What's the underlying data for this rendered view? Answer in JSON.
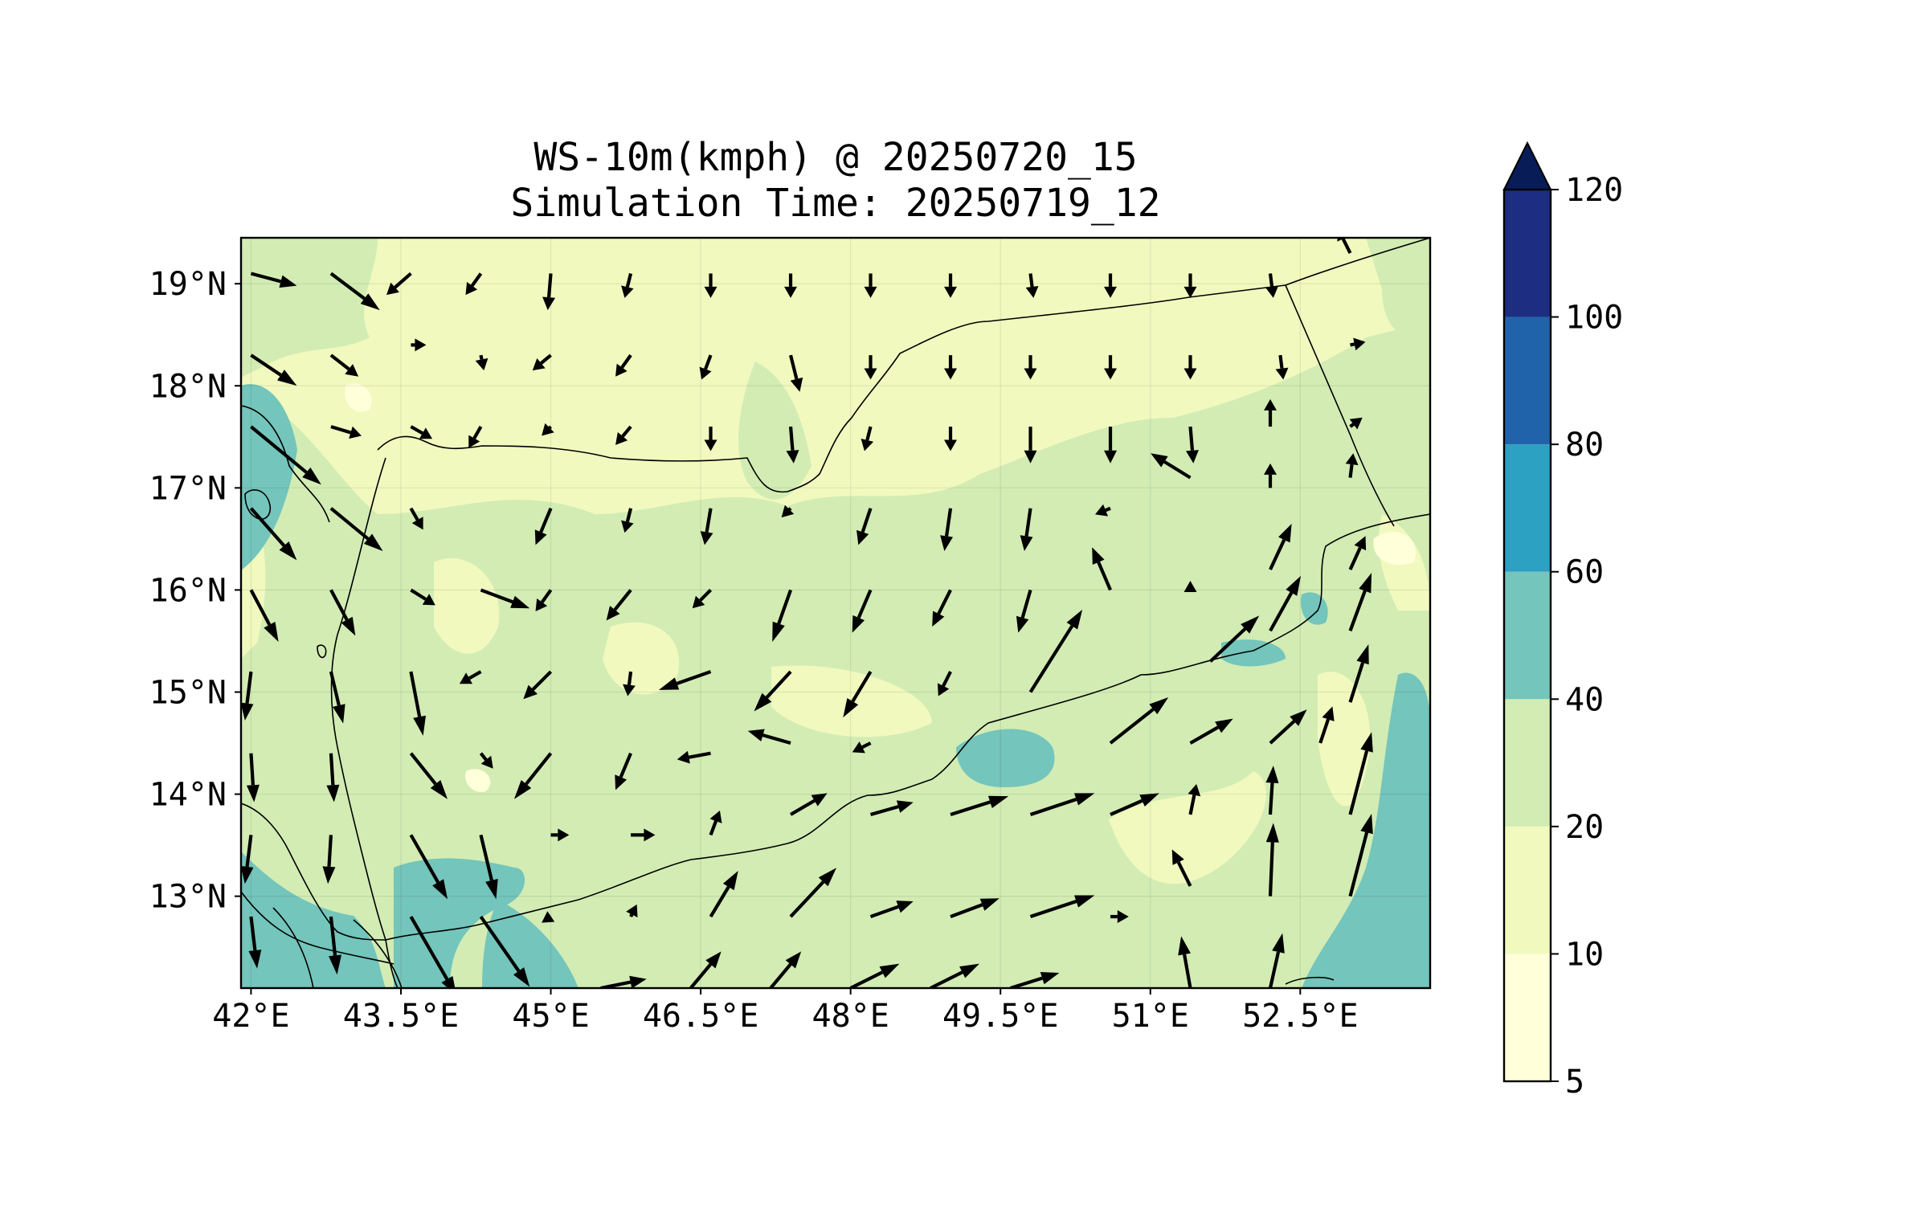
{
  "title": {
    "line1": "WS-10m(kmph) @ 20250720_15",
    "line2": "Simulation Time: 20250719_12"
  },
  "axes": {
    "lon_range": [
      41.9,
      53.8
    ],
    "lat_range": [
      12.1,
      19.45
    ],
    "x_ticks": [
      {
        "value": 42,
        "label": "42°E"
      },
      {
        "value": 43.5,
        "label": "43.5°E"
      },
      {
        "value": 45,
        "label": "45°E"
      },
      {
        "value": 46.5,
        "label": "46.5°E"
      },
      {
        "value": 48,
        "label": "48°E"
      },
      {
        "value": 49.5,
        "label": "49.5°E"
      },
      {
        "value": 51,
        "label": "51°E"
      },
      {
        "value": 52.5,
        "label": "52.5°E"
      }
    ],
    "y_ticks": [
      {
        "value": 19,
        "label": "19°N"
      },
      {
        "value": 18,
        "label": "18°N"
      },
      {
        "value": 17,
        "label": "17°N"
      },
      {
        "value": 16,
        "label": "16°N"
      },
      {
        "value": 15,
        "label": "15°N"
      },
      {
        "value": 14,
        "label": "14°N"
      },
      {
        "value": 13,
        "label": "13°N"
      }
    ]
  },
  "colorbar": {
    "levels": [
      {
        "value": 5,
        "label": "5",
        "color": "#ffffd9"
      },
      {
        "value": 10,
        "label": "10",
        "color": "#f1f9bf"
      },
      {
        "value": 20,
        "label": "20",
        "color": "#d2ecb4"
      },
      {
        "value": 40,
        "label": "40",
        "color": "#74c5bb"
      },
      {
        "value": 60,
        "label": "60",
        "color": "#2ca1c2"
      },
      {
        "value": 80,
        "label": "80",
        "color": "#2163aa"
      },
      {
        "value": 100,
        "label": "100",
        "color": "#1c2d82"
      },
      {
        "value": 120,
        "label": "120",
        "color": "#081d58"
      }
    ],
    "extend": "max"
  },
  "chart_data": {
    "type": "heatmap",
    "variable": "WS-10m(kmph)",
    "valid_time": "20250720_15",
    "simulation_time": "20250719_12",
    "colorbar_bounds": [
      5,
      10,
      20,
      40,
      60,
      80,
      100,
      120
    ],
    "wind_vectors_note_units": "m/s-like arrows, shown as direction and relative length",
    "wind_vectors": [
      {
        "lon": 42.0,
        "lat": 19.1,
        "u": 1.5,
        "v": -0.4
      },
      {
        "lon": 42.8,
        "lat": 19.1,
        "u": 1.6,
        "v": -1.2
      },
      {
        "lon": 43.6,
        "lat": 19.1,
        "u": -0.8,
        "v": -0.7
      },
      {
        "lon": 44.3,
        "lat": 19.1,
        "u": -0.5,
        "v": -0.7
      },
      {
        "lon": 45.0,
        "lat": 19.1,
        "u": -0.1,
        "v": -1.2
      },
      {
        "lon": 45.8,
        "lat": 19.1,
        "u": -0.2,
        "v": -0.8
      },
      {
        "lon": 46.6,
        "lat": 19.1,
        "u": 0.0,
        "v": -0.8
      },
      {
        "lon": 47.4,
        "lat": 19.1,
        "u": 0.0,
        "v": -0.8
      },
      {
        "lon": 48.2,
        "lat": 19.1,
        "u": 0.0,
        "v": -0.8
      },
      {
        "lon": 49.0,
        "lat": 19.1,
        "u": 0.0,
        "v": -0.8
      },
      {
        "lon": 49.8,
        "lat": 19.1,
        "u": 0.1,
        "v": -0.8
      },
      {
        "lon": 50.6,
        "lat": 19.1,
        "u": 0.0,
        "v": -0.8
      },
      {
        "lon": 51.4,
        "lat": 19.1,
        "u": 0.0,
        "v": -0.8
      },
      {
        "lon": 52.2,
        "lat": 19.1,
        "u": 0.1,
        "v": -0.8
      },
      {
        "lon": 53.0,
        "lat": 19.3,
        "u": -0.4,
        "v": 0.8
      },
      {
        "lon": 42.0,
        "lat": 18.3,
        "u": 1.5,
        "v": -1.0
      },
      {
        "lon": 42.8,
        "lat": 18.3,
        "u": 0.9,
        "v": -0.7
      },
      {
        "lon": 43.6,
        "lat": 18.4,
        "u": 0.5,
        "v": 0.0
      },
      {
        "lon": 44.3,
        "lat": 18.3,
        "u": 0.1,
        "v": -0.5
      },
      {
        "lon": 45.0,
        "lat": 18.3,
        "u": -0.6,
        "v": -0.5
      },
      {
        "lon": 45.8,
        "lat": 18.3,
        "u": -0.5,
        "v": -0.7
      },
      {
        "lon": 46.6,
        "lat": 18.3,
        "u": -0.3,
        "v": -0.8
      },
      {
        "lon": 47.4,
        "lat": 18.3,
        "u": 0.3,
        "v": -1.2
      },
      {
        "lon": 48.2,
        "lat": 18.3,
        "u": 0.0,
        "v": -0.8
      },
      {
        "lon": 49.0,
        "lat": 18.3,
        "u": 0.0,
        "v": -0.8
      },
      {
        "lon": 49.8,
        "lat": 18.3,
        "u": 0.0,
        "v": -0.8
      },
      {
        "lon": 50.6,
        "lat": 18.3,
        "u": 0.0,
        "v": -0.8
      },
      {
        "lon": 51.4,
        "lat": 18.3,
        "u": 0.0,
        "v": -0.8
      },
      {
        "lon": 52.3,
        "lat": 18.3,
        "u": 0.1,
        "v": -0.8
      },
      {
        "lon": 53.0,
        "lat": 18.4,
        "u": 0.5,
        "v": 0.1
      },
      {
        "lon": 42.0,
        "lat": 17.6,
        "u": 2.3,
        "v": -1.9
      },
      {
        "lon": 42.8,
        "lat": 17.6,
        "u": 1.0,
        "v": -0.3
      },
      {
        "lon": 43.6,
        "lat": 17.6,
        "u": 0.7,
        "v": -0.4
      },
      {
        "lon": 44.3,
        "lat": 17.6,
        "u": -0.4,
        "v": -0.7
      },
      {
        "lon": 45.0,
        "lat": 17.6,
        "u": -0.3,
        "v": -0.3
      },
      {
        "lon": 45.8,
        "lat": 17.6,
        "u": -0.5,
        "v": -0.6
      },
      {
        "lon": 46.6,
        "lat": 17.6,
        "u": 0.0,
        "v": -0.8
      },
      {
        "lon": 47.4,
        "lat": 17.6,
        "u": 0.1,
        "v": -1.2
      },
      {
        "lon": 48.2,
        "lat": 17.6,
        "u": -0.2,
        "v": -0.8
      },
      {
        "lon": 49.0,
        "lat": 17.6,
        "u": 0.0,
        "v": -0.8
      },
      {
        "lon": 49.8,
        "lat": 17.6,
        "u": 0.0,
        "v": -1.2
      },
      {
        "lon": 50.6,
        "lat": 17.6,
        "u": 0.0,
        "v": -1.2
      },
      {
        "lon": 51.4,
        "lat": 17.6,
        "u": 0.1,
        "v": -1.2
      },
      {
        "lon": 52.2,
        "lat": 17.6,
        "u": 0.0,
        "v": 0.9
      },
      {
        "lon": 53.0,
        "lat": 17.6,
        "u": 0.4,
        "v": 0.3
      },
      {
        "lon": 42.0,
        "lat": 16.8,
        "u": 1.5,
        "v": -1.7
      },
      {
        "lon": 42.8,
        "lat": 16.8,
        "u": 1.7,
        "v": -1.4
      },
      {
        "lon": 43.6,
        "lat": 16.8,
        "u": 0.4,
        "v": -0.7
      },
      {
        "lon": 44.3,
        "lat": 16.8,
        "u": 0.0,
        "v": 0.0
      },
      {
        "lon": 45.0,
        "lat": 16.8,
        "u": -0.5,
        "v": -1.2
      },
      {
        "lon": 45.8,
        "lat": 16.8,
        "u": -0.2,
        "v": -0.8
      },
      {
        "lon": 46.6,
        "lat": 16.8,
        "u": -0.2,
        "v": -1.2
      },
      {
        "lon": 47.4,
        "lat": 16.8,
        "u": -0.3,
        "v": -0.3
      },
      {
        "lon": 48.2,
        "lat": 16.8,
        "u": -0.4,
        "v": -1.2
      },
      {
        "lon": 49.0,
        "lat": 16.8,
        "u": -0.2,
        "v": -1.4
      },
      {
        "lon": 49.8,
        "lat": 16.8,
        "u": -0.2,
        "v": -1.4
      },
      {
        "lon": 50.6,
        "lat": 16.8,
        "u": -0.5,
        "v": -0.2
      },
      {
        "lon": 51.4,
        "lat": 17.1,
        "u": -1.3,
        "v": 0.8
      },
      {
        "lon": 52.2,
        "lat": 17.0,
        "u": 0.0,
        "v": 0.8
      },
      {
        "lon": 53.0,
        "lat": 17.1,
        "u": 0.1,
        "v": 0.8
      },
      {
        "lon": 42.0,
        "lat": 16.0,
        "u": 0.9,
        "v": -1.7
      },
      {
        "lon": 42.8,
        "lat": 16.0,
        "u": 0.8,
        "v": -1.5
      },
      {
        "lon": 43.6,
        "lat": 16.0,
        "u": 0.8,
        "v": -0.5
      },
      {
        "lon": 44.3,
        "lat": 16.0,
        "u": 1.6,
        "v": -0.6
      },
      {
        "lon": 45.0,
        "lat": 16.0,
        "u": -0.5,
        "v": -0.7
      },
      {
        "lon": 45.8,
        "lat": 16.0,
        "u": -0.8,
        "v": -1.0
      },
      {
        "lon": 46.6,
        "lat": 16.0,
        "u": -0.6,
        "v": -0.6
      },
      {
        "lon": 47.4,
        "lat": 16.0,
        "u": -0.6,
        "v": -1.7
      },
      {
        "lon": 48.2,
        "lat": 16.0,
        "u": -0.6,
        "v": -1.4
      },
      {
        "lon": 49.0,
        "lat": 16.0,
        "u": -0.6,
        "v": -1.2
      },
      {
        "lon": 49.8,
        "lat": 16.0,
        "u": -0.4,
        "v": -1.4
      },
      {
        "lon": 50.6,
        "lat": 16.0,
        "u": -0.6,
        "v": 1.4
      },
      {
        "lon": 51.4,
        "lat": 16.0,
        "u": 0.0,
        "v": 0.3
      },
      {
        "lon": 52.2,
        "lat": 16.2,
        "u": 0.7,
        "v": 1.5
      },
      {
        "lon": 53.0,
        "lat": 16.2,
        "u": 0.5,
        "v": 1.1
      },
      {
        "lon": 42.0,
        "lat": 15.2,
        "u": -0.2,
        "v": -1.6
      },
      {
        "lon": 42.8,
        "lat": 15.2,
        "u": 0.4,
        "v": -1.7
      },
      {
        "lon": 43.6,
        "lat": 15.2,
        "u": 0.4,
        "v": -2.1
      },
      {
        "lon": 44.3,
        "lat": 15.2,
        "u": -0.7,
        "v": -0.4
      },
      {
        "lon": 45.0,
        "lat": 15.2,
        "u": -0.9,
        "v": -0.9
      },
      {
        "lon": 45.8,
        "lat": 15.2,
        "u": -0.1,
        "v": -0.8
      },
      {
        "lon": 46.6,
        "lat": 15.2,
        "u": -1.7,
        "v": -0.6
      },
      {
        "lon": 47.4,
        "lat": 15.2,
        "u": -1.2,
        "v": -1.3
      },
      {
        "lon": 48.2,
        "lat": 15.2,
        "u": -0.9,
        "v": -1.5
      },
      {
        "lon": 49.0,
        "lat": 15.2,
        "u": -0.4,
        "v": -0.8
      },
      {
        "lon": 49.8,
        "lat": 15.0,
        "u": 1.7,
        "v": 2.7
      },
      {
        "lon": 50.5,
        "lat": 15.2,
        "u": 0.0,
        "v": 0.0
      },
      {
        "lon": 51.2,
        "lat": 15.2,
        "u": 0.0,
        "v": 0.0
      },
      {
        "lon": 51.6,
        "lat": 15.3,
        "u": 1.6,
        "v": 1.5
      },
      {
        "lon": 52.2,
        "lat": 15.6,
        "u": 1.0,
        "v": 1.8
      },
      {
        "lon": 53.0,
        "lat": 15.6,
        "u": 0.7,
        "v": 1.9
      },
      {
        "lon": 42.0,
        "lat": 14.4,
        "u": 0.1,
        "v": -1.6
      },
      {
        "lon": 42.8,
        "lat": 14.4,
        "u": 0.1,
        "v": -1.6
      },
      {
        "lon": 43.6,
        "lat": 14.4,
        "u": 1.2,
        "v": -1.5
      },
      {
        "lon": 44.3,
        "lat": 14.4,
        "u": 0.4,
        "v": -0.5
      },
      {
        "lon": 45.0,
        "lat": 14.4,
        "u": -1.2,
        "v": -1.5
      },
      {
        "lon": 45.8,
        "lat": 14.4,
        "u": -0.5,
        "v": -1.2
      },
      {
        "lon": 46.6,
        "lat": 14.4,
        "u": -1.1,
        "v": -0.2
      },
      {
        "lon": 47.4,
        "lat": 14.5,
        "u": -1.4,
        "v": 0.4
      },
      {
        "lon": 48.2,
        "lat": 14.5,
        "u": -0.6,
        "v": -0.3
      },
      {
        "lon": 49.0,
        "lat": 14.5,
        "u": 0.0,
        "v": 0.0
      },
      {
        "lon": 49.8,
        "lat": 14.5,
        "u": 0.0,
        "v": 0.0
      },
      {
        "lon": 50.6,
        "lat": 14.5,
        "u": 1.9,
        "v": 1.5
      },
      {
        "lon": 51.4,
        "lat": 14.5,
        "u": 1.4,
        "v": 0.8
      },
      {
        "lon": 52.2,
        "lat": 14.5,
        "u": 1.2,
        "v": 1.1
      },
      {
        "lon": 52.7,
        "lat": 14.5,
        "u": 0.4,
        "v": 1.2
      },
      {
        "lon": 53.0,
        "lat": 14.9,
        "u": 0.6,
        "v": 1.9
      },
      {
        "lon": 42.0,
        "lat": 13.6,
        "u": -0.2,
        "v": -1.6
      },
      {
        "lon": 42.8,
        "lat": 13.6,
        "u": -0.1,
        "v": -1.6
      },
      {
        "lon": 43.6,
        "lat": 13.6,
        "u": 1.2,
        "v": -2.1
      },
      {
        "lon": 44.3,
        "lat": 13.6,
        "u": 0.5,
        "v": -2.1
      },
      {
        "lon": 45.0,
        "lat": 13.6,
        "u": 0.6,
        "v": 0.0
      },
      {
        "lon": 45.8,
        "lat": 13.6,
        "u": 0.8,
        "v": 0.0
      },
      {
        "lon": 46.6,
        "lat": 13.6,
        "u": 0.3,
        "v": 0.8
      },
      {
        "lon": 47.4,
        "lat": 13.8,
        "u": 1.2,
        "v": 0.7
      },
      {
        "lon": 48.2,
        "lat": 13.8,
        "u": 1.4,
        "v": 0.4
      },
      {
        "lon": 49.0,
        "lat": 13.8,
        "u": 1.9,
        "v": 0.6
      },
      {
        "lon": 49.8,
        "lat": 13.8,
        "u": 2.1,
        "v": 0.7
      },
      {
        "lon": 50.6,
        "lat": 13.8,
        "u": 1.6,
        "v": 0.7
      },
      {
        "lon": 51.4,
        "lat": 13.8,
        "u": 0.2,
        "v": 1.0
      },
      {
        "lon": 52.2,
        "lat": 13.8,
        "u": 0.1,
        "v": 1.6
      },
      {
        "lon": 53.0,
        "lat": 13.8,
        "u": 0.7,
        "v": 2.7
      },
      {
        "lon": 42.0,
        "lat": 12.8,
        "u": 0.2,
        "v": -1.7
      },
      {
        "lon": 42.8,
        "lat": 12.8,
        "u": 0.2,
        "v": -1.9
      },
      {
        "lon": 43.6,
        "lat": 12.8,
        "u": 1.5,
        "v": -2.6
      },
      {
        "lon": 44.3,
        "lat": 12.8,
        "u": 1.6,
        "v": -2.3
      },
      {
        "lon": 45.0,
        "lat": 12.8,
        "u": -0.3,
        "v": -0.2
      },
      {
        "lon": 45.8,
        "lat": 12.8,
        "u": 0.2,
        "v": 0.4
      },
      {
        "lon": 46.6,
        "lat": 12.8,
        "u": 0.9,
        "v": 1.5
      },
      {
        "lon": 47.4,
        "lat": 12.8,
        "u": 1.5,
        "v": 1.6
      },
      {
        "lon": 48.2,
        "lat": 12.8,
        "u": 1.4,
        "v": 0.5
      },
      {
        "lon": 49.0,
        "lat": 12.8,
        "u": 1.6,
        "v": 0.6
      },
      {
        "lon": 49.8,
        "lat": 12.8,
        "u": 2.1,
        "v": 0.7
      },
      {
        "lon": 50.6,
        "lat": 12.8,
        "u": 0.6,
        "v": 0.0
      },
      {
        "lon": 51.4,
        "lat": 13.1,
        "u": -0.6,
        "v": 1.2
      },
      {
        "lon": 52.2,
        "lat": 13.0,
        "u": 0.1,
        "v": 2.4
      },
      {
        "lon": 53.0,
        "lat": 13.0,
        "u": 0.7,
        "v": 2.7
      },
      {
        "lon": 42.8,
        "lat": 12.1,
        "u": 0.0,
        "v": 0.0
      },
      {
        "lon": 44.0,
        "lat": 12.1,
        "u": 0.0,
        "v": 0.0
      },
      {
        "lon": 45.5,
        "lat": 12.1,
        "u": 1.5,
        "v": 0.3
      },
      {
        "lon": 46.4,
        "lat": 12.1,
        "u": 1.0,
        "v": 1.2
      },
      {
        "lon": 47.2,
        "lat": 12.1,
        "u": 1.0,
        "v": 1.2
      },
      {
        "lon": 48.0,
        "lat": 12.1,
        "u": 1.6,
        "v": 0.8
      },
      {
        "lon": 48.8,
        "lat": 12.1,
        "u": 1.6,
        "v": 0.8
      },
      {
        "lon": 49.6,
        "lat": 12.1,
        "u": 1.6,
        "v": 0.5
      },
      {
        "lon": 50.4,
        "lat": 12.1,
        "u": 0.0,
        "v": 0.0
      },
      {
        "lon": 51.4,
        "lat": 12.1,
        "u": -0.3,
        "v": 1.7
      },
      {
        "lon": 52.2,
        "lat": 12.1,
        "u": 0.4,
        "v": 1.8
      }
    ]
  }
}
